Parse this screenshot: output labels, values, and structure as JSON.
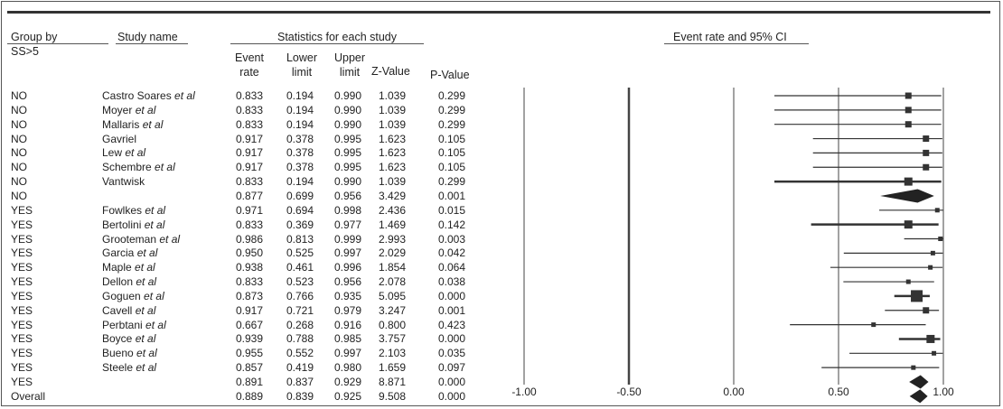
{
  "headers": {
    "group_by": "Group by",
    "study_name": "Study name",
    "subgroup": "SS>5",
    "stats_group": "Statistics for each study",
    "event_rate": [
      "Event",
      "rate"
    ],
    "lower_limit": [
      "Lower",
      "limit"
    ],
    "upper_limit": [
      "Upper",
      "limit"
    ],
    "z_value": "Z-Value",
    "p_value": "P-Value",
    "plot_title": "Event rate and 95% CI"
  },
  "chart_data": {
    "type": "forest",
    "title": "Event rate and 95% CI",
    "x_ticks": [
      "-1.00",
      "-0.50",
      "0.00",
      "0.50",
      "1.00"
    ],
    "xlim": [
      -1.0,
      1.0
    ],
    "rows": [
      {
        "group": "NO",
        "study": "Castro Soares",
        "etal": "et al",
        "event_rate": 0.833,
        "lower": 0.194,
        "upper": 0.99,
        "z": 1.039,
        "p": 0.299,
        "er": "0.833",
        "ll": "0.194",
        "ul": "0.990",
        "zv": "1.039",
        "pv": "0.299",
        "kind": "study",
        "weight": 2
      },
      {
        "group": "NO",
        "study": "Moyer",
        "etal": "et al",
        "event_rate": 0.833,
        "lower": 0.194,
        "upper": 0.99,
        "z": 1.039,
        "p": 0.299,
        "er": "0.833",
        "ll": "0.194",
        "ul": "0.990",
        "zv": "1.039",
        "pv": "0.299",
        "kind": "study",
        "weight": 2
      },
      {
        "group": "NO",
        "study": "Mallaris",
        "etal": "et al",
        "event_rate": 0.833,
        "lower": 0.194,
        "upper": 0.99,
        "z": 1.039,
        "p": 0.299,
        "er": "0.833",
        "ll": "0.194",
        "ul": "0.990",
        "zv": "1.039",
        "pv": "0.299",
        "kind": "study",
        "weight": 2
      },
      {
        "group": "NO",
        "study": "Gavriel",
        "etal": "",
        "event_rate": 0.917,
        "lower": 0.378,
        "upper": 0.995,
        "z": 1.623,
        "p": 0.105,
        "er": "0.917",
        "ll": "0.378",
        "ul": "0.995",
        "zv": "1.623",
        "pv": "0.105",
        "kind": "study",
        "weight": 2
      },
      {
        "group": "NO",
        "study": "Lew",
        "etal": "et al",
        "event_rate": 0.917,
        "lower": 0.378,
        "upper": 0.995,
        "z": 1.623,
        "p": 0.105,
        "er": "0.917",
        "ll": "0.378",
        "ul": "0.995",
        "zv": "1.623",
        "pv": "0.105",
        "kind": "study",
        "weight": 2
      },
      {
        "group": "NO",
        "study": "Schembre",
        "etal": "et al",
        "event_rate": 0.917,
        "lower": 0.378,
        "upper": 0.995,
        "z": 1.623,
        "p": 0.105,
        "er": "0.917",
        "ll": "0.378",
        "ul": "0.995",
        "zv": "1.623",
        "pv": "0.105",
        "kind": "study",
        "weight": 2
      },
      {
        "group": "NO",
        "study": "Vantwisk",
        "etal": "",
        "event_rate": 0.833,
        "lower": 0.194,
        "upper": 0.99,
        "z": 1.039,
        "p": 0.299,
        "er": "0.833",
        "ll": "0.194",
        "ul": "0.990",
        "zv": "1.039",
        "pv": "0.299",
        "kind": "study",
        "weight": 3
      },
      {
        "group": "NO",
        "study": "",
        "etal": "",
        "event_rate": 0.877,
        "lower": 0.699,
        "upper": 0.956,
        "z": 3.429,
        "p": 0.001,
        "er": "0.877",
        "ll": "0.699",
        "ul": "0.956",
        "zv": "3.429",
        "pv": "0.001",
        "kind": "subtotal",
        "weight": 0
      },
      {
        "group": "YES",
        "study": "Fowlkes",
        "etal": "et al",
        "event_rate": 0.971,
        "lower": 0.694,
        "upper": 0.998,
        "z": 2.436,
        "p": 0.015,
        "er": "0.971",
        "ll": "0.694",
        "ul": "0.998",
        "zv": "2.436",
        "pv": "0.015",
        "kind": "study",
        "weight": 1
      },
      {
        "group": "YES",
        "study": "Bertolini",
        "etal": "et al",
        "event_rate": 0.833,
        "lower": 0.369,
        "upper": 0.977,
        "z": 1.469,
        "p": 0.142,
        "er": "0.833",
        "ll": "0.369",
        "ul": "0.977",
        "zv": "1.469",
        "pv": "0.142",
        "kind": "study",
        "weight": 3
      },
      {
        "group": "YES",
        "study": "Grooteman",
        "etal": "et al",
        "event_rate": 0.986,
        "lower": 0.813,
        "upper": 0.999,
        "z": 2.993,
        "p": 0.003,
        "er": "0.986",
        "ll": "0.813",
        "ul": "0.999",
        "zv": "2.993",
        "pv": "0.003",
        "kind": "study",
        "weight": 1
      },
      {
        "group": "YES",
        "study": "Garcia",
        "etal": "et al",
        "event_rate": 0.95,
        "lower": 0.525,
        "upper": 0.997,
        "z": 2.029,
        "p": 0.042,
        "er": "0.950",
        "ll": "0.525",
        "ul": "0.997",
        "zv": "2.029",
        "pv": "0.042",
        "kind": "study",
        "weight": 1
      },
      {
        "group": "YES",
        "study": "Maple",
        "etal": "et al",
        "event_rate": 0.938,
        "lower": 0.461,
        "upper": 0.996,
        "z": 1.854,
        "p": 0.064,
        "er": "0.938",
        "ll": "0.461",
        "ul": "0.996",
        "zv": "1.854",
        "pv": "0.064",
        "kind": "study",
        "weight": 1
      },
      {
        "group": "YES",
        "study": "Dellon",
        "etal": "et al",
        "event_rate": 0.833,
        "lower": 0.523,
        "upper": 0.956,
        "z": 2.078,
        "p": 0.038,
        "er": "0.833",
        "ll": "0.523",
        "ul": "0.956",
        "zv": "2.078",
        "pv": "0.038",
        "kind": "study",
        "weight": 1
      },
      {
        "group": "YES",
        "study": "Goguen",
        "etal": "et al",
        "event_rate": 0.873,
        "lower": 0.766,
        "upper": 0.935,
        "z": 5.095,
        "p": 0.0,
        "er": "0.873",
        "ll": "0.766",
        "ul": "0.935",
        "zv": "5.095",
        "pv": "0.000",
        "kind": "study",
        "weight": 5
      },
      {
        "group": "YES",
        "study": "Cavell",
        "etal": "et al",
        "event_rate": 0.917,
        "lower": 0.721,
        "upper": 0.979,
        "z": 3.247,
        "p": 0.001,
        "er": "0.917",
        "ll": "0.721",
        "ul": "0.979",
        "zv": "3.247",
        "pv": "0.001",
        "kind": "study",
        "weight": 2
      },
      {
        "group": "YES",
        "study": "Perbtani",
        "etal": "et al",
        "event_rate": 0.667,
        "lower": 0.268,
        "upper": 0.916,
        "z": 0.8,
        "p": 0.423,
        "er": "0.667",
        "ll": "0.268",
        "ul": "0.916",
        "zv": "0.800",
        "pv": "0.423",
        "kind": "study",
        "weight": 1
      },
      {
        "group": "YES",
        "study": "Boyce",
        "etal": "et al",
        "event_rate": 0.939,
        "lower": 0.788,
        "upper": 0.985,
        "z": 3.757,
        "p": 0.0,
        "er": "0.939",
        "ll": "0.788",
        "ul": "0.985",
        "zv": "3.757",
        "pv": "0.000",
        "kind": "study",
        "weight": 3
      },
      {
        "group": "YES",
        "study": "Bueno",
        "etal": "et al",
        "event_rate": 0.955,
        "lower": 0.552,
        "upper": 0.997,
        "z": 2.103,
        "p": 0.035,
        "er": "0.955",
        "ll": "0.552",
        "ul": "0.997",
        "zv": "2.103",
        "pv": "0.035",
        "kind": "study",
        "weight": 1
      },
      {
        "group": "YES",
        "study": "Steele",
        "etal": "et al",
        "event_rate": 0.857,
        "lower": 0.419,
        "upper": 0.98,
        "z": 1.659,
        "p": 0.097,
        "er": "0.857",
        "ll": "0.419",
        "ul": "0.980",
        "zv": "1.659",
        "pv": "0.097",
        "kind": "study",
        "weight": 1
      },
      {
        "group": "YES",
        "study": "",
        "etal": "",
        "event_rate": 0.891,
        "lower": 0.837,
        "upper": 0.929,
        "z": 8.871,
        "p": 0.0,
        "er": "0.891",
        "ll": "0.837",
        "ul": "0.929",
        "zv": "8.871",
        "pv": "0.000",
        "kind": "subtotal",
        "weight": 0
      },
      {
        "group": "Overall",
        "study": "",
        "etal": "",
        "event_rate": 0.889,
        "lower": 0.839,
        "upper": 0.925,
        "z": 9.508,
        "p": 0.0,
        "er": "0.889",
        "ll": "0.839",
        "ul": "0.925",
        "zv": "9.508",
        "pv": "0.000",
        "kind": "overall",
        "weight": 0
      }
    ]
  }
}
